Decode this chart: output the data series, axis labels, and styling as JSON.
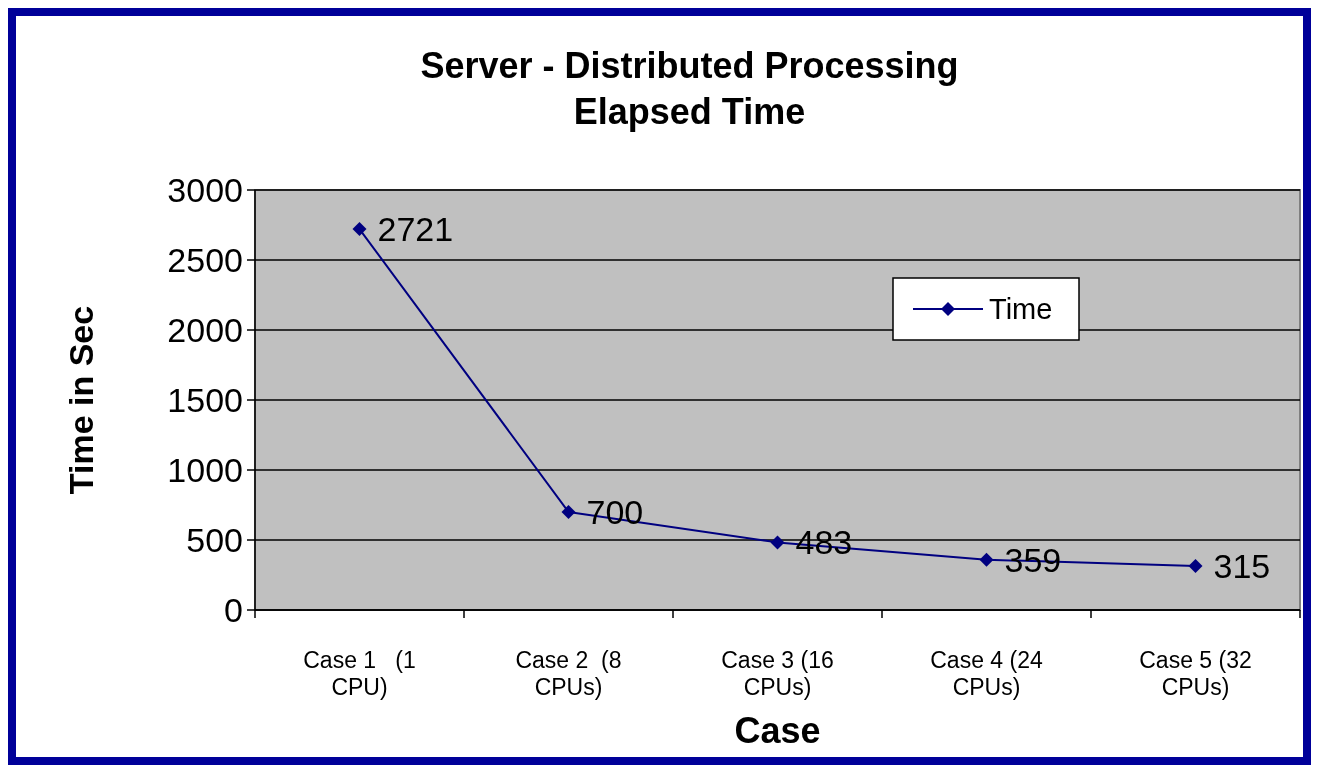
{
  "chart_data": {
    "type": "line",
    "title": "Server - Distributed Processing\nElapsed Time",
    "xlabel": "Case",
    "ylabel": "Time in Sec",
    "categories": [
      "Case 1   (1 CPU)",
      "Case 2  (8 CPUs)",
      "Case 3 (16 CPUs)",
      "Case 4 (24 CPUs)",
      "Case 5 (32 CPUs)"
    ],
    "series": [
      {
        "name": "Time",
        "color": "#000080",
        "values": [
          2721,
          700,
          483,
          359,
          315
        ]
      }
    ],
    "ylim": [
      0,
      3000
    ],
    "yticks": [
      0,
      500,
      1000,
      1500,
      2000,
      2500,
      3000
    ],
    "grid": "y",
    "legend": "top right",
    "marker": "diamond",
    "line_style": "solid",
    "data_labels": true
  }
}
